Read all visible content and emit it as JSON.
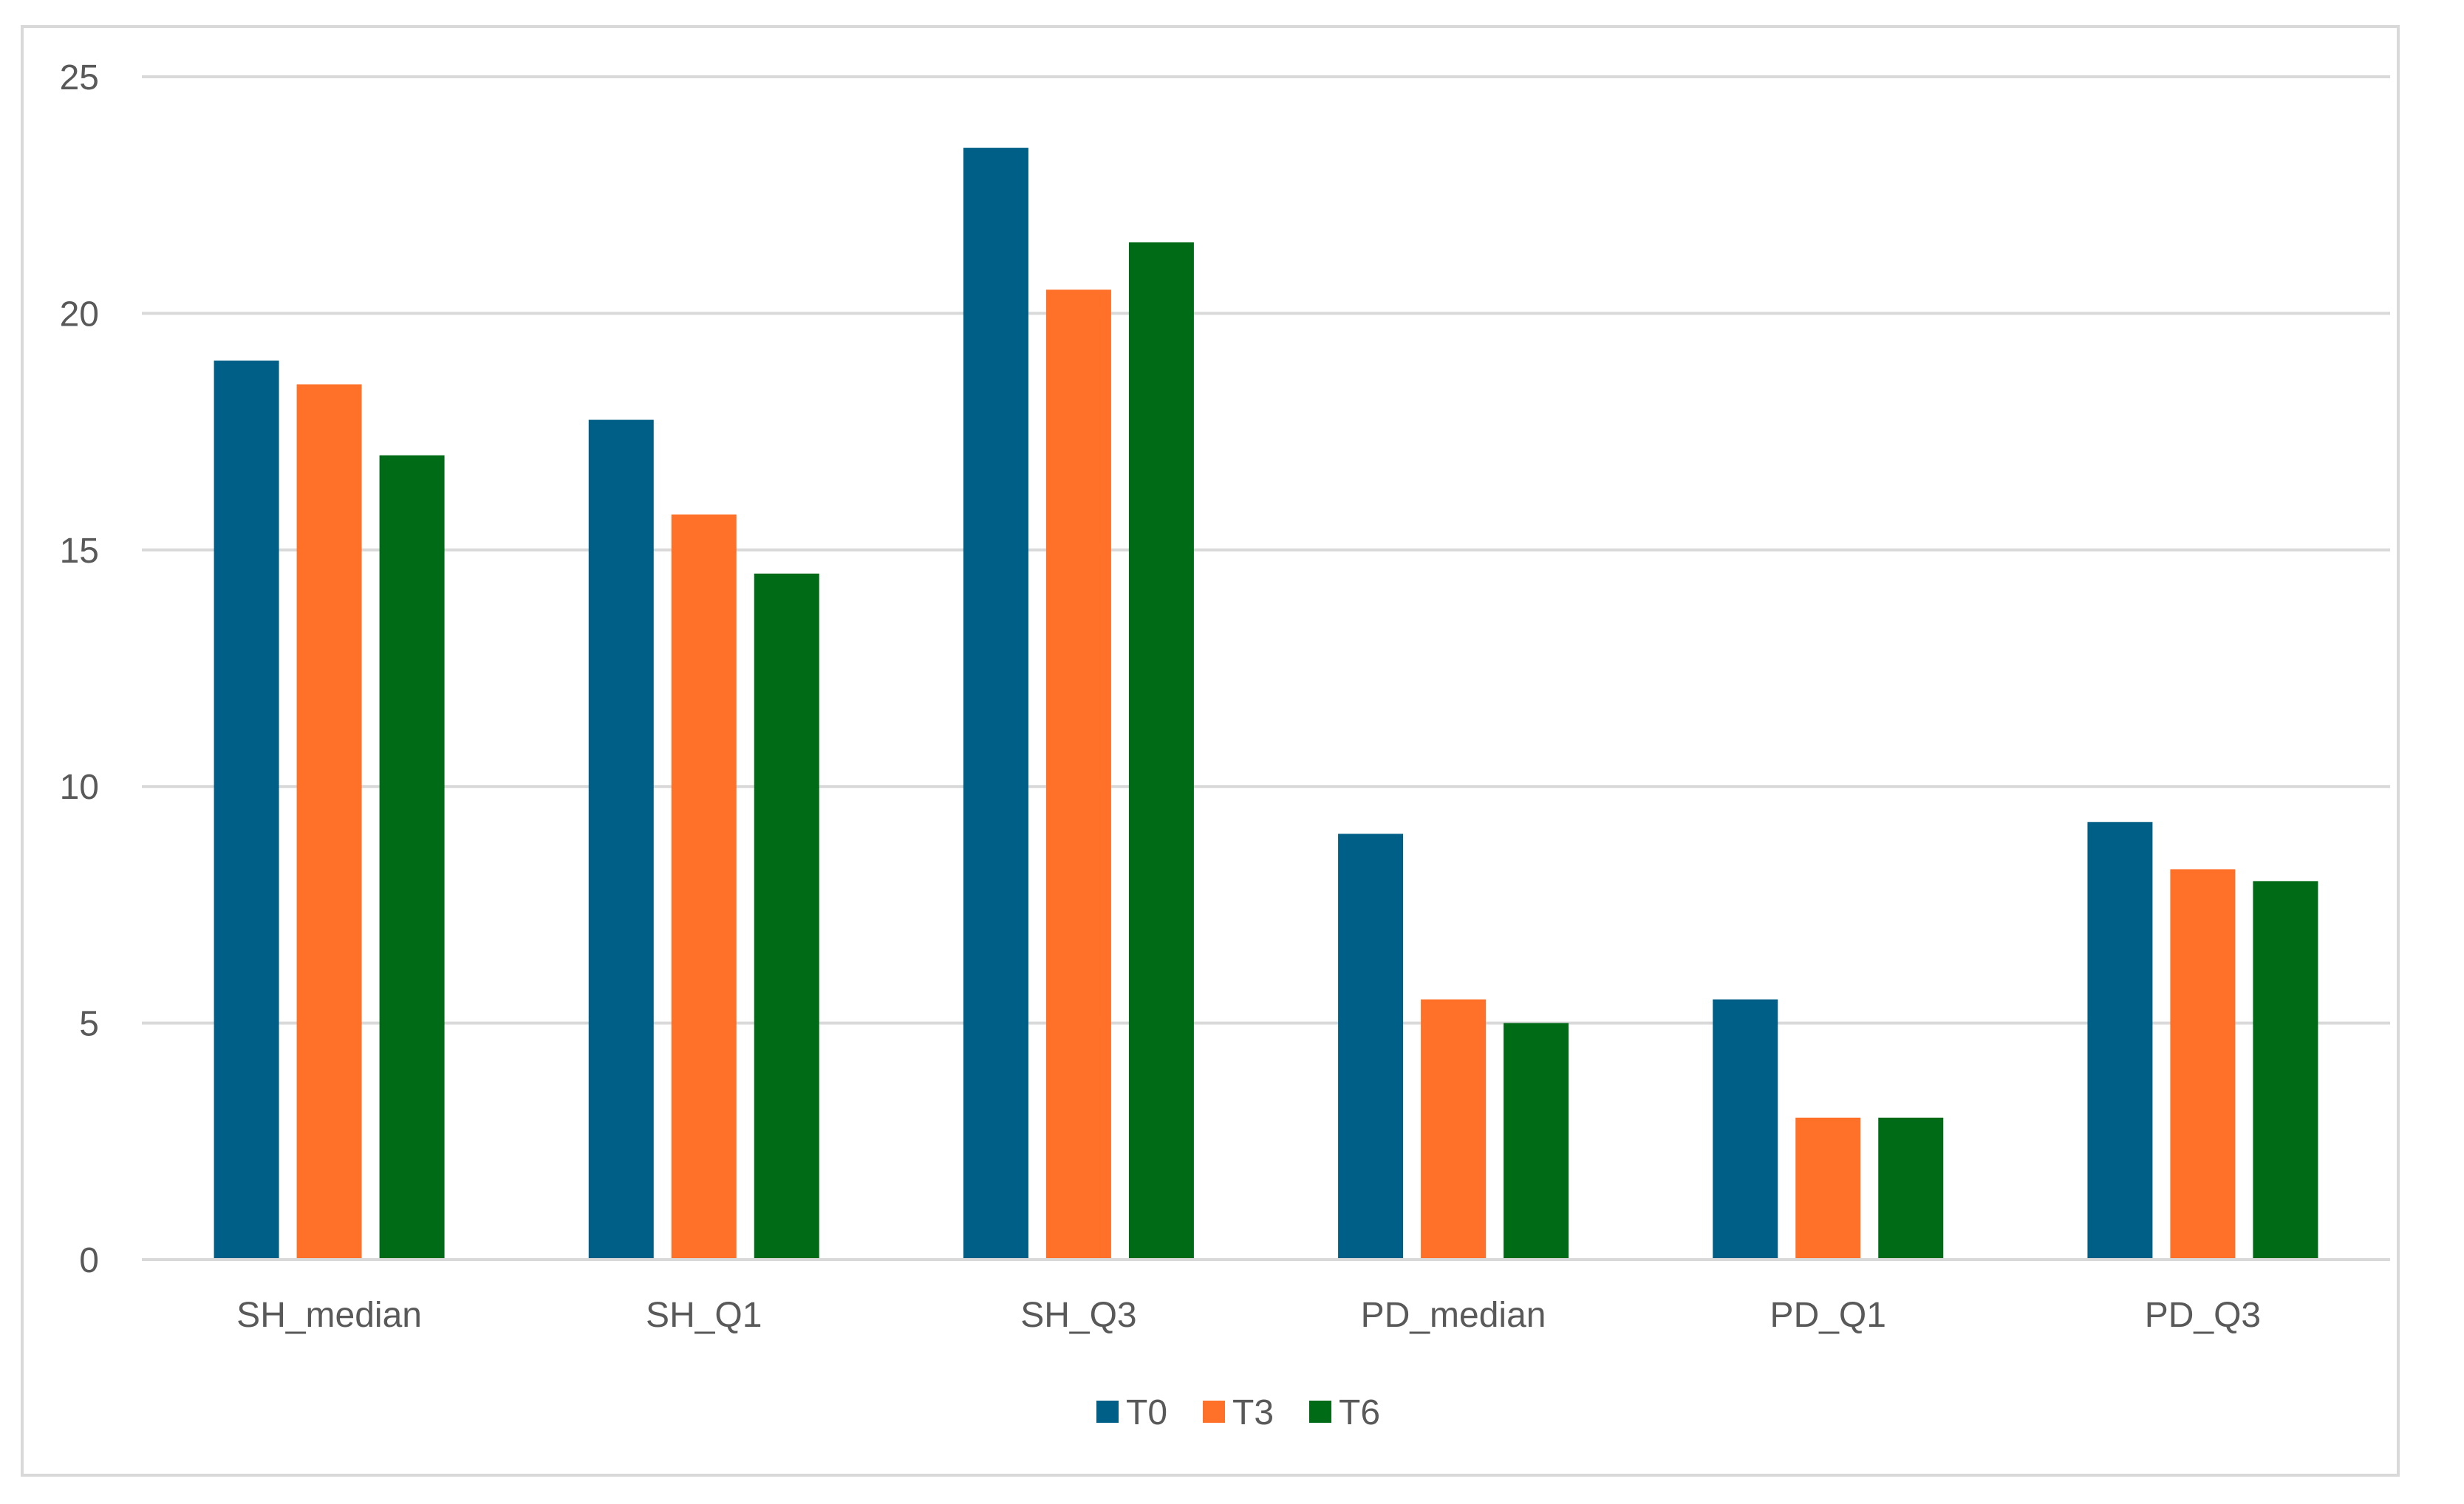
{
  "chart_data": {
    "type": "bar",
    "title": "",
    "xlabel": "",
    "ylabel": "",
    "categories": [
      "SH_median",
      "SH_Q1",
      "SH_Q3",
      "PD_median",
      "PD_Q1",
      "PD_Q3"
    ],
    "series": [
      {
        "name": "T0",
        "color": "#005f86",
        "values": [
          19,
          17.75,
          23.5,
          9,
          5.5,
          9.25
        ]
      },
      {
        "name": "T3",
        "color": "#ff7128",
        "values": [
          18.5,
          15.75,
          20.5,
          5.5,
          3,
          8.25
        ]
      },
      {
        "name": "T6",
        "color": "#006b16",
        "values": [
          17,
          14.5,
          21.5,
          5,
          3,
          8
        ]
      }
    ],
    "ylim": [
      0,
      25
    ],
    "yticks": [
      0,
      5,
      10,
      15,
      20,
      25
    ],
    "grid": true,
    "legend_position": "bottom-center"
  }
}
